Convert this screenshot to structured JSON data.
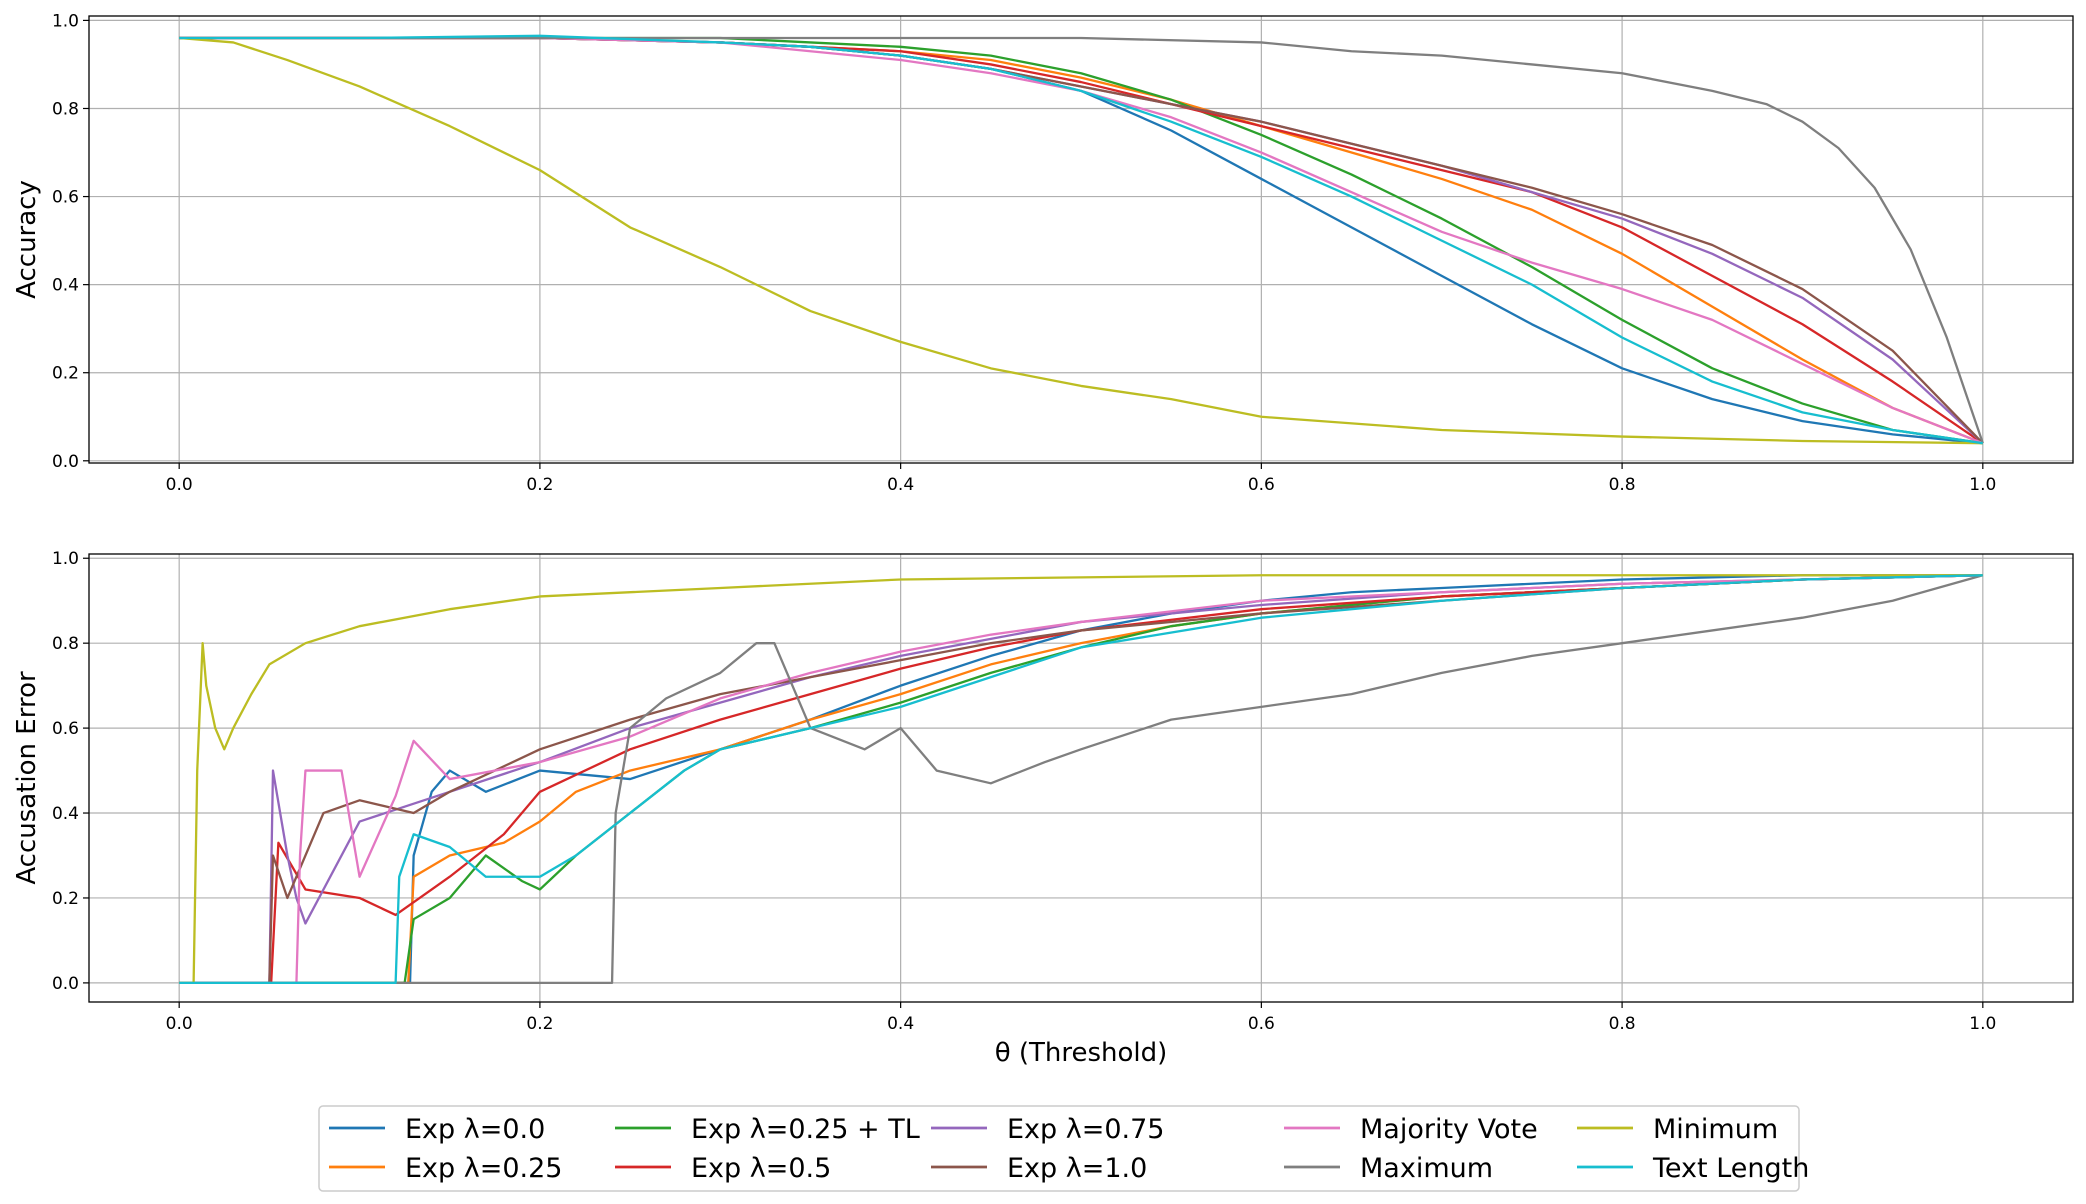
{
  "colors": {
    "Exp λ=0.0": "#1f77b4",
    "Exp λ=0.25": "#ff7f0e",
    "Exp λ=0.25 + TL": "#2ca02c",
    "Exp λ=0.5": "#d62728",
    "Exp λ=0.75": "#9467bd",
    "Exp λ=1.0": "#8c564b",
    "Majority Vote": "#e377c2",
    "Maximum": "#7f7f7f",
    "Minimum": "#bcbd22",
    "Text Length": "#17becf"
  },
  "legend": {
    "placement": "bottom-center",
    "columns": 5,
    "entries": [
      "Exp λ=0.0",
      "Exp λ=0.25",
      "Exp λ=0.25 + TL",
      "Exp λ=0.5",
      "Exp λ=0.75",
      "Exp λ=1.0",
      "Majority Vote",
      "Maximum",
      "Minimum",
      "Text Length"
    ]
  },
  "chart_data": [
    {
      "id": "accuracy",
      "type": "line",
      "title": "",
      "xlabel": "",
      "ylabel": "Accuracy",
      "xlim": [
        -0.05,
        1.05
      ],
      "ylim": [
        -0.005,
        1.01
      ],
      "xticks": [
        0.0,
        0.2,
        0.4,
        0.6,
        0.8,
        1.0
      ],
      "xtick_labels": [
        "0.0",
        "0.2",
        "0.4",
        "0.6",
        "0.8",
        "1.0"
      ],
      "yticks": [
        0.0,
        0.2,
        0.4,
        0.6,
        0.8,
        1.0
      ],
      "ytick_labels": [
        "0.0",
        "0.2",
        "0.4",
        "0.6",
        "0.8",
        "1.0"
      ],
      "grid": true,
      "series": [
        {
          "name": "Exp λ=0.0",
          "x": [
            0.0,
            0.1,
            0.2,
            0.3,
            0.35,
            0.4,
            0.45,
            0.5,
            0.55,
            0.6,
            0.65,
            0.7,
            0.75,
            0.8,
            0.85,
            0.9,
            0.95,
            1.0
          ],
          "y": [
            0.96,
            0.96,
            0.96,
            0.95,
            0.94,
            0.92,
            0.89,
            0.84,
            0.75,
            0.64,
            0.53,
            0.42,
            0.31,
            0.21,
            0.14,
            0.09,
            0.06,
            0.04
          ]
        },
        {
          "name": "Exp λ=0.25",
          "x": [
            0.0,
            0.1,
            0.2,
            0.3,
            0.35,
            0.4,
            0.45,
            0.5,
            0.55,
            0.6,
            0.65,
            0.7,
            0.75,
            0.8,
            0.85,
            0.9,
            0.95,
            1.0
          ],
          "y": [
            0.96,
            0.96,
            0.96,
            0.95,
            0.94,
            0.93,
            0.91,
            0.87,
            0.82,
            0.76,
            0.7,
            0.64,
            0.57,
            0.47,
            0.35,
            0.23,
            0.12,
            0.04
          ]
        },
        {
          "name": "Exp λ=0.25 + TL",
          "x": [
            0.0,
            0.1,
            0.2,
            0.3,
            0.35,
            0.4,
            0.45,
            0.5,
            0.55,
            0.6,
            0.65,
            0.7,
            0.75,
            0.8,
            0.85,
            0.9,
            0.95,
            1.0
          ],
          "y": [
            0.96,
            0.96,
            0.96,
            0.96,
            0.95,
            0.94,
            0.92,
            0.88,
            0.82,
            0.74,
            0.65,
            0.55,
            0.44,
            0.32,
            0.21,
            0.13,
            0.07,
            0.04
          ]
        },
        {
          "name": "Exp λ=0.5",
          "x": [
            0.0,
            0.1,
            0.2,
            0.3,
            0.35,
            0.4,
            0.45,
            0.5,
            0.55,
            0.6,
            0.65,
            0.7,
            0.75,
            0.8,
            0.85,
            0.9,
            0.95,
            1.0
          ],
          "y": [
            0.96,
            0.96,
            0.96,
            0.95,
            0.94,
            0.93,
            0.9,
            0.86,
            0.81,
            0.76,
            0.71,
            0.66,
            0.61,
            0.53,
            0.42,
            0.31,
            0.18,
            0.04
          ]
        },
        {
          "name": "Exp λ=0.75",
          "x": [
            0.0,
            0.1,
            0.2,
            0.3,
            0.35,
            0.4,
            0.45,
            0.5,
            0.55,
            0.6,
            0.65,
            0.7,
            0.75,
            0.8,
            0.85,
            0.9,
            0.95,
            1.0
          ],
          "y": [
            0.96,
            0.96,
            0.96,
            0.95,
            0.94,
            0.92,
            0.89,
            0.85,
            0.81,
            0.77,
            0.72,
            0.67,
            0.61,
            0.55,
            0.47,
            0.37,
            0.23,
            0.04
          ]
        },
        {
          "name": "Exp λ=1.0",
          "x": [
            0.0,
            0.1,
            0.2,
            0.3,
            0.35,
            0.4,
            0.45,
            0.5,
            0.55,
            0.6,
            0.65,
            0.7,
            0.75,
            0.8,
            0.85,
            0.9,
            0.95,
            1.0
          ],
          "y": [
            0.96,
            0.96,
            0.96,
            0.95,
            0.94,
            0.92,
            0.89,
            0.85,
            0.81,
            0.77,
            0.72,
            0.67,
            0.62,
            0.56,
            0.49,
            0.39,
            0.25,
            0.04
          ]
        },
        {
          "name": "Majority Vote",
          "x": [
            0.0,
            0.1,
            0.2,
            0.3,
            0.35,
            0.4,
            0.45,
            0.5,
            0.55,
            0.6,
            0.65,
            0.7,
            0.75,
            0.8,
            0.85,
            0.9,
            0.95,
            1.0
          ],
          "y": [
            0.96,
            0.96,
            0.96,
            0.95,
            0.93,
            0.91,
            0.88,
            0.84,
            0.78,
            0.7,
            0.61,
            0.52,
            0.45,
            0.39,
            0.32,
            0.22,
            0.12,
            0.04
          ]
        },
        {
          "name": "Maximum",
          "x": [
            0.0,
            0.1,
            0.2,
            0.3,
            0.4,
            0.5,
            0.6,
            0.65,
            0.7,
            0.75,
            0.8,
            0.85,
            0.88,
            0.9,
            0.92,
            0.94,
            0.96,
            0.98,
            0.99,
            1.0
          ],
          "y": [
            0.96,
            0.96,
            0.96,
            0.96,
            0.96,
            0.96,
            0.95,
            0.93,
            0.92,
            0.9,
            0.88,
            0.84,
            0.81,
            0.77,
            0.71,
            0.62,
            0.48,
            0.28,
            0.16,
            0.04
          ]
        },
        {
          "name": "Minimum",
          "x": [
            0.0,
            0.03,
            0.06,
            0.1,
            0.15,
            0.2,
            0.25,
            0.3,
            0.35,
            0.4,
            0.45,
            0.5,
            0.55,
            0.6,
            0.7,
            0.8,
            0.9,
            1.0
          ],
          "y": [
            0.96,
            0.95,
            0.91,
            0.85,
            0.76,
            0.66,
            0.53,
            0.44,
            0.34,
            0.27,
            0.21,
            0.17,
            0.14,
            0.1,
            0.07,
            0.055,
            0.045,
            0.04
          ]
        },
        {
          "name": "Text Length",
          "x": [
            0.0,
            0.1,
            0.2,
            0.3,
            0.35,
            0.4,
            0.45,
            0.5,
            0.55,
            0.6,
            0.65,
            0.7,
            0.75,
            0.8,
            0.85,
            0.9,
            0.95,
            1.0
          ],
          "y": [
            0.96,
            0.96,
            0.965,
            0.95,
            0.94,
            0.92,
            0.89,
            0.84,
            0.77,
            0.69,
            0.6,
            0.5,
            0.4,
            0.28,
            0.18,
            0.11,
            0.07,
            0.04
          ]
        }
      ]
    },
    {
      "id": "accusation-error",
      "type": "line",
      "title": "",
      "xlabel": "θ (Threshold)",
      "ylabel": "Accusation Error",
      "xlim": [
        -0.05,
        1.05
      ],
      "ylim": [
        -0.045,
        1.01
      ],
      "xticks": [
        0.0,
        0.2,
        0.4,
        0.6,
        0.8,
        1.0
      ],
      "xtick_labels": [
        "0.0",
        "0.2",
        "0.4",
        "0.6",
        "0.8",
        "1.0"
      ],
      "yticks": [
        0.0,
        0.2,
        0.4,
        0.6,
        0.8,
        1.0
      ],
      "ytick_labels": [
        "0.0",
        "0.2",
        "0.4",
        "0.6",
        "0.8",
        "1.0"
      ],
      "grid": true,
      "series": [
        {
          "name": "Exp λ=0.0",
          "x": [
            0.0,
            0.128,
            0.13,
            0.14,
            0.15,
            0.17,
            0.2,
            0.25,
            0.3,
            0.35,
            0.4,
            0.45,
            0.5,
            0.55,
            0.6,
            0.65,
            0.7,
            0.8,
            0.9,
            1.0
          ],
          "y": [
            0.0,
            0.0,
            0.3,
            0.45,
            0.5,
            0.45,
            0.5,
            0.48,
            0.55,
            0.62,
            0.7,
            0.77,
            0.83,
            0.87,
            0.9,
            0.92,
            0.93,
            0.95,
            0.96,
            0.96
          ]
        },
        {
          "name": "Exp λ=0.25",
          "x": [
            0.0,
            0.127,
            0.13,
            0.15,
            0.18,
            0.2,
            0.22,
            0.25,
            0.3,
            0.35,
            0.4,
            0.45,
            0.5,
            0.55,
            0.6,
            0.7,
            0.8,
            0.9,
            1.0
          ],
          "y": [
            0.0,
            0.0,
            0.25,
            0.3,
            0.33,
            0.38,
            0.45,
            0.5,
            0.55,
            0.62,
            0.68,
            0.75,
            0.8,
            0.84,
            0.87,
            0.91,
            0.93,
            0.95,
            0.96
          ]
        },
        {
          "name": "Exp λ=0.25 + TL",
          "x": [
            0.0,
            0.125,
            0.13,
            0.15,
            0.17,
            0.19,
            0.2,
            0.22,
            0.25,
            0.28,
            0.3,
            0.35,
            0.4,
            0.45,
            0.5,
            0.55,
            0.6,
            0.7,
            0.8,
            0.9,
            1.0
          ],
          "y": [
            0.0,
            0.0,
            0.15,
            0.2,
            0.3,
            0.24,
            0.22,
            0.3,
            0.4,
            0.5,
            0.55,
            0.6,
            0.66,
            0.73,
            0.79,
            0.84,
            0.87,
            0.91,
            0.93,
            0.95,
            0.96
          ]
        },
        {
          "name": "Exp λ=0.5",
          "x": [
            0.0,
            0.051,
            0.055,
            0.07,
            0.1,
            0.12,
            0.15,
            0.18,
            0.2,
            0.25,
            0.3,
            0.35,
            0.4,
            0.45,
            0.5,
            0.6,
            0.7,
            0.8,
            0.9,
            1.0
          ],
          "y": [
            0.0,
            0.0,
            0.33,
            0.22,
            0.2,
            0.16,
            0.25,
            0.35,
            0.45,
            0.55,
            0.62,
            0.68,
            0.74,
            0.79,
            0.83,
            0.88,
            0.91,
            0.93,
            0.95,
            0.96
          ]
        },
        {
          "name": "Exp λ=0.75",
          "x": [
            0.0,
            0.05,
            0.052,
            0.06,
            0.065,
            0.07,
            0.1,
            0.15,
            0.2,
            0.25,
            0.3,
            0.35,
            0.4,
            0.45,
            0.5,
            0.6,
            0.7,
            0.8,
            0.9,
            1.0
          ],
          "y": [
            0.0,
            0.0,
            0.5,
            0.3,
            0.2,
            0.14,
            0.38,
            0.45,
            0.52,
            0.6,
            0.66,
            0.72,
            0.77,
            0.81,
            0.85,
            0.89,
            0.92,
            0.94,
            0.95,
            0.96
          ]
        },
        {
          "name": "Exp λ=1.0",
          "x": [
            0.0,
            0.05,
            0.052,
            0.06,
            0.08,
            0.1,
            0.13,
            0.15,
            0.2,
            0.25,
            0.3,
            0.35,
            0.4,
            0.45,
            0.5,
            0.6,
            0.7,
            0.8,
            0.9,
            1.0
          ],
          "y": [
            0.0,
            0.0,
            0.3,
            0.2,
            0.4,
            0.43,
            0.4,
            0.45,
            0.55,
            0.62,
            0.68,
            0.72,
            0.76,
            0.8,
            0.83,
            0.87,
            0.9,
            0.93,
            0.95,
            0.96
          ]
        },
        {
          "name": "Majority Vote",
          "x": [
            0.0,
            0.065,
            0.067,
            0.07,
            0.09,
            0.1,
            0.12,
            0.13,
            0.15,
            0.2,
            0.25,
            0.3,
            0.35,
            0.4,
            0.45,
            0.5,
            0.6,
            0.7,
            0.8,
            0.9,
            1.0
          ],
          "y": [
            0.0,
            0.0,
            0.3,
            0.5,
            0.5,
            0.25,
            0.44,
            0.57,
            0.48,
            0.52,
            0.58,
            0.67,
            0.73,
            0.78,
            0.82,
            0.85,
            0.9,
            0.92,
            0.94,
            0.95,
            0.96
          ]
        },
        {
          "name": "Maximum",
          "x": [
            0.0,
            0.24,
            0.242,
            0.25,
            0.27,
            0.3,
            0.32,
            0.33,
            0.35,
            0.38,
            0.4,
            0.42,
            0.45,
            0.48,
            0.5,
            0.55,
            0.6,
            0.65,
            0.7,
            0.75,
            0.8,
            0.85,
            0.9,
            0.95,
            1.0
          ],
          "y": [
            0.0,
            0.0,
            0.4,
            0.6,
            0.67,
            0.73,
            0.8,
            0.8,
            0.6,
            0.55,
            0.6,
            0.5,
            0.47,
            0.52,
            0.55,
            0.62,
            0.65,
            0.68,
            0.73,
            0.77,
            0.8,
            0.83,
            0.86,
            0.9,
            0.96
          ]
        },
        {
          "name": "Minimum",
          "x": [
            0.0,
            0.008,
            0.01,
            0.013,
            0.015,
            0.02,
            0.025,
            0.03,
            0.04,
            0.05,
            0.07,
            0.1,
            0.15,
            0.2,
            0.3,
            0.4,
            0.5,
            0.6,
            0.8,
            1.0
          ],
          "y": [
            0.0,
            0.0,
            0.5,
            0.8,
            0.7,
            0.6,
            0.55,
            0.6,
            0.68,
            0.75,
            0.8,
            0.84,
            0.88,
            0.91,
            0.93,
            0.95,
            0.955,
            0.96,
            0.96,
            0.96
          ]
        },
        {
          "name": "Text Length",
          "x": [
            0.0,
            0.12,
            0.122,
            0.13,
            0.15,
            0.17,
            0.2,
            0.22,
            0.25,
            0.28,
            0.3,
            0.35,
            0.4,
            0.45,
            0.5,
            0.6,
            0.7,
            0.8,
            0.9,
            1.0
          ],
          "y": [
            0.0,
            0.0,
            0.25,
            0.35,
            0.32,
            0.25,
            0.25,
            0.3,
            0.4,
            0.5,
            0.55,
            0.6,
            0.65,
            0.72,
            0.79,
            0.86,
            0.9,
            0.93,
            0.95,
            0.96
          ]
        }
      ]
    }
  ]
}
